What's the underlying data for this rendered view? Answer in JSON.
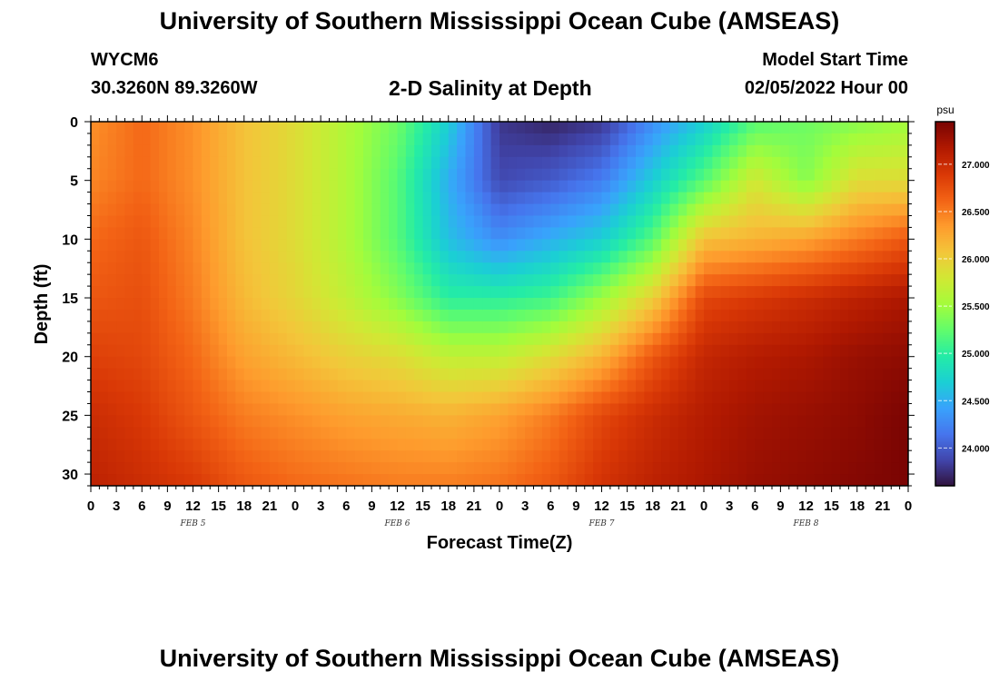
{
  "page": {
    "title": "University of Southern Mississippi Ocean Cube (AMSEAS)",
    "title_repeat": "University of Southern Mississippi Ocean Cube (AMSEAS)",
    "station_id": "WYCM6",
    "station_coords": "30.3260N  89.3260W",
    "model_start_label": "Model Start Time",
    "model_start_value": "02/05/2022 Hour 00"
  },
  "chart_data": {
    "type": "heatmap",
    "title": "2-D Salinity at Depth",
    "xlabel": "Forecast Time(Z)",
    "ylabel": "Depth (ft)",
    "x_unit": "hours from model start (02/05/2022 00Z)",
    "xlim": [
      0,
      96
    ],
    "ylim": [
      0,
      31
    ],
    "y_inverted": true,
    "x_ticks": [
      0,
      3,
      6,
      9,
      12,
      15,
      18,
      21,
      24,
      27,
      30,
      33,
      36,
      39,
      42,
      45,
      48,
      51,
      54,
      57,
      60,
      63,
      66,
      69,
      72,
      75,
      78,
      81,
      84,
      87,
      90,
      93,
      96
    ],
    "x_tick_labels": [
      "0",
      "3",
      "6",
      "9",
      "12",
      "15",
      "18",
      "21",
      "0",
      "3",
      "6",
      "9",
      "12",
      "15",
      "18",
      "21",
      "0",
      "3",
      "6",
      "9",
      "12",
      "15",
      "18",
      "21",
      "0",
      "3",
      "6",
      "9",
      "12",
      "15",
      "18",
      "21",
      "0"
    ],
    "day_labels": [
      {
        "x": 12,
        "text": "FEB 5"
      },
      {
        "x": 36,
        "text": "FEB 6"
      },
      {
        "x": 60,
        "text": "FEB 7"
      },
      {
        "x": 84,
        "text": "FEB 8"
      }
    ],
    "y_ticks": [
      0,
      5,
      10,
      15,
      20,
      25,
      30
    ],
    "colorbar": {
      "unit": "psu",
      "min": 23.6,
      "max": 27.45,
      "ticks": [
        24.0,
        24.5,
        25.0,
        25.5,
        26.0,
        26.5,
        27.0
      ],
      "tick_labels": [
        "24.000",
        "24.500",
        "25.000",
        "25.500",
        "26.000",
        "26.500",
        "27.000"
      ],
      "colormap": [
        "#30123b",
        "#4145ab",
        "#4675ed",
        "#39a2fc",
        "#1bcfd4",
        "#24eca6",
        "#61fc6c",
        "#a4fc3b",
        "#d1e834",
        "#f3c63a",
        "#fe9b2d",
        "#f36315",
        "#d93806",
        "#b11901",
        "#7a0403"
      ]
    },
    "series_note": "salinity (psu) at sample forecast hours; layers = depth ft",
    "depth_levels": [
      0,
      5,
      10,
      15,
      20,
      25,
      31
    ],
    "sample_hours": [
      0,
      6,
      12,
      18,
      24,
      30,
      36,
      42,
      48,
      54,
      60,
      66,
      72,
      78,
      84,
      90,
      96
    ],
    "values": [
      [
        26.4,
        26.6,
        26.4,
        26.1,
        25.9,
        25.6,
        25.3,
        24.7,
        23.8,
        23.7,
        23.8,
        24.3,
        24.7,
        25.2,
        25.3,
        25.4,
        25.5
      ],
      [
        26.45,
        26.6,
        26.4,
        26.1,
        25.9,
        25.6,
        25.2,
        24.5,
        23.9,
        24.0,
        24.2,
        24.7,
        25.2,
        25.8,
        25.4,
        25.9,
        25.9
      ],
      [
        26.6,
        26.7,
        26.45,
        26.1,
        25.9,
        25.6,
        25.2,
        24.6,
        24.3,
        24.5,
        24.7,
        25.2,
        26.1,
        26.2,
        26.3,
        26.5,
        26.7
      ],
      [
        26.7,
        26.75,
        26.5,
        26.15,
        25.95,
        25.7,
        25.4,
        25.0,
        25.0,
        25.1,
        25.5,
        26.0,
        26.8,
        26.9,
        27.0,
        27.1,
        27.2
      ],
      [
        26.85,
        26.8,
        26.6,
        26.3,
        26.15,
        26.0,
        25.9,
        25.7,
        25.7,
        25.9,
        26.2,
        26.7,
        27.05,
        27.15,
        27.2,
        27.3,
        27.35
      ],
      [
        27.0,
        26.9,
        26.7,
        26.5,
        26.4,
        26.3,
        26.25,
        26.2,
        26.3,
        26.5,
        26.8,
        27.0,
        27.15,
        27.25,
        27.3,
        27.35,
        27.45
      ],
      [
        27.1,
        27.0,
        26.9,
        26.7,
        26.6,
        26.55,
        26.5,
        26.5,
        26.55,
        26.7,
        26.95,
        27.1,
        27.2,
        27.3,
        27.35,
        27.4,
        27.45
      ]
    ]
  }
}
